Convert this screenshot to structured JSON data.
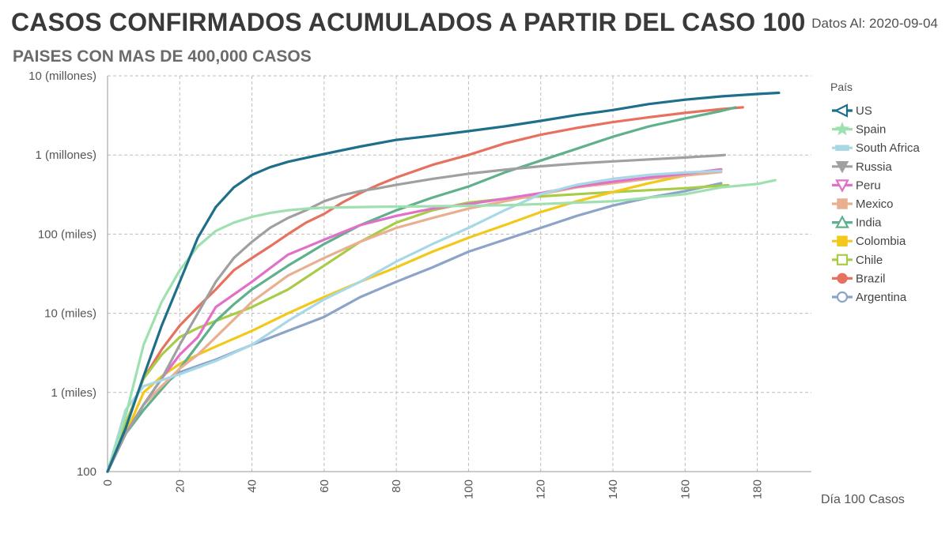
{
  "header": {
    "title": "CASOS CONFIRMADOS ACUMULADOS A PARTIR DEL CASO 100",
    "subtitle": "PAISES CON MAS DE 400,000 CASOS",
    "date_label": "Datos Al: 2020-09-04"
  },
  "chart_data": {
    "type": "line",
    "title": "CASOS CONFIRMADOS ACUMULADOS A PARTIR DEL CASO 100",
    "subtitle": "PAISES CON MAS DE 400,000 CASOS",
    "xlabel": "Día 100 Casos",
    "ylabel": "",
    "x_ticks": [
      0,
      20,
      40,
      60,
      80,
      100,
      120,
      140,
      160,
      180
    ],
    "xlim": [
      0,
      195
    ],
    "y_scale": "log",
    "ylim": [
      100,
      10000000
    ],
    "y_ticks": [
      100,
      1000,
      10000,
      100000,
      1000000,
      10000000
    ],
    "y_tick_labels": [
      "100",
      "1 (miles)",
      "10 (miles)",
      "100 (miles)",
      "1 (millones)",
      "10 (millones)"
    ],
    "grid": true,
    "legend_title": "País",
    "legend_position": "right",
    "series": [
      {
        "name": "US",
        "color": "#1f6f8b",
        "marker": "tri-left",
        "points": [
          [
            0,
            100
          ],
          [
            5,
            350
          ],
          [
            10,
            1600
          ],
          [
            15,
            7000
          ],
          [
            20,
            25000
          ],
          [
            25,
            90000
          ],
          [
            30,
            220000
          ],
          [
            35,
            390000
          ],
          [
            40,
            560000
          ],
          [
            45,
            700000
          ],
          [
            50,
            820000
          ],
          [
            55,
            920000
          ],
          [
            60,
            1030000
          ],
          [
            70,
            1280000
          ],
          [
            80,
            1550000
          ],
          [
            90,
            1750000
          ],
          [
            100,
            2000000
          ],
          [
            110,
            2300000
          ],
          [
            120,
            2700000
          ],
          [
            130,
            3200000
          ],
          [
            140,
            3700000
          ],
          [
            150,
            4400000
          ],
          [
            160,
            5000000
          ],
          [
            170,
            5500000
          ],
          [
            180,
            5900000
          ],
          [
            186,
            6100000
          ]
        ]
      },
      {
        "name": "Spain",
        "color": "#9fe0b0",
        "marker": "star",
        "points": [
          [
            0,
            100
          ],
          [
            5,
            500
          ],
          [
            10,
            4000
          ],
          [
            15,
            14000
          ],
          [
            20,
            35000
          ],
          [
            25,
            70000
          ],
          [
            30,
            110000
          ],
          [
            35,
            140000
          ],
          [
            40,
            165000
          ],
          [
            45,
            185000
          ],
          [
            50,
            200000
          ],
          [
            55,
            210000
          ],
          [
            60,
            216000
          ],
          [
            70,
            220000
          ],
          [
            80,
            223000
          ],
          [
            90,
            225000
          ],
          [
            100,
            228000
          ],
          [
            110,
            232000
          ],
          [
            120,
            240000
          ],
          [
            130,
            250000
          ],
          [
            140,
            260000
          ],
          [
            150,
            290000
          ],
          [
            160,
            320000
          ],
          [
            170,
            390000
          ],
          [
            180,
            430000
          ],
          [
            185,
            480000
          ]
        ]
      },
      {
        "name": "South Africa",
        "color": "#a8d8e6",
        "marker": "dash",
        "points": [
          [
            0,
            100
          ],
          [
            5,
            600
          ],
          [
            10,
            1200
          ],
          [
            20,
            1700
          ],
          [
            30,
            2500
          ],
          [
            40,
            4000
          ],
          [
            50,
            8000
          ],
          [
            60,
            15000
          ],
          [
            70,
            25000
          ],
          [
            80,
            45000
          ],
          [
            90,
            75000
          ],
          [
            100,
            120000
          ],
          [
            110,
            200000
          ],
          [
            120,
            320000
          ],
          [
            130,
            420000
          ],
          [
            140,
            500000
          ],
          [
            150,
            560000
          ],
          [
            160,
            600000
          ],
          [
            170,
            630000
          ]
        ]
      },
      {
        "name": "Russia",
        "color": "#a0a0a0",
        "marker": "tri-down",
        "points": [
          [
            0,
            100
          ],
          [
            5,
            300
          ],
          [
            10,
            700
          ],
          [
            15,
            1500
          ],
          [
            20,
            4000
          ],
          [
            25,
            10000
          ],
          [
            30,
            25000
          ],
          [
            35,
            50000
          ],
          [
            40,
            80000
          ],
          [
            45,
            120000
          ],
          [
            50,
            160000
          ],
          [
            55,
            200000
          ],
          [
            60,
            260000
          ],
          [
            65,
            310000
          ],
          [
            70,
            350000
          ],
          [
            75,
            380000
          ],
          [
            80,
            420000
          ],
          [
            90,
            500000
          ],
          [
            100,
            580000
          ],
          [
            110,
            650000
          ],
          [
            120,
            720000
          ],
          [
            130,
            780000
          ],
          [
            140,
            830000
          ],
          [
            150,
            880000
          ],
          [
            160,
            930000
          ],
          [
            170,
            990000
          ],
          [
            171,
            1000000
          ]
        ]
      },
      {
        "name": "Peru",
        "color": "#e070c8",
        "marker": "tri-down-open",
        "points": [
          [
            0,
            100
          ],
          [
            5,
            300
          ],
          [
            10,
            700
          ],
          [
            15,
            1500
          ],
          [
            20,
            3000
          ],
          [
            25,
            5000
          ],
          [
            30,
            12000
          ],
          [
            40,
            25000
          ],
          [
            50,
            55000
          ],
          [
            60,
            85000
          ],
          [
            70,
            130000
          ],
          [
            80,
            170000
          ],
          [
            90,
            210000
          ],
          [
            100,
            240000
          ],
          [
            110,
            280000
          ],
          [
            120,
            330000
          ],
          [
            130,
            400000
          ],
          [
            140,
            460000
          ],
          [
            150,
            520000
          ],
          [
            160,
            580000
          ],
          [
            170,
            660000
          ]
        ]
      },
      {
        "name": "Mexico",
        "color": "#e8b090",
        "marker": "square",
        "points": [
          [
            0,
            100
          ],
          [
            5,
            300
          ],
          [
            10,
            700
          ],
          [
            15,
            1200
          ],
          [
            20,
            2000
          ],
          [
            25,
            3000
          ],
          [
            30,
            5000
          ],
          [
            40,
            14000
          ],
          [
            50,
            30000
          ],
          [
            60,
            50000
          ],
          [
            70,
            80000
          ],
          [
            80,
            120000
          ],
          [
            90,
            160000
          ],
          [
            100,
            210000
          ],
          [
            110,
            260000
          ],
          [
            120,
            320000
          ],
          [
            130,
            390000
          ],
          [
            140,
            440000
          ],
          [
            150,
            500000
          ],
          [
            160,
            550000
          ],
          [
            170,
            610000
          ]
        ]
      },
      {
        "name": "India",
        "color": "#5fb08c",
        "marker": "triangle",
        "points": [
          [
            0,
            100
          ],
          [
            5,
            300
          ],
          [
            10,
            600
          ],
          [
            15,
            1100
          ],
          [
            20,
            2000
          ],
          [
            25,
            4000
          ],
          [
            30,
            8000
          ],
          [
            35,
            13000
          ],
          [
            40,
            20000
          ],
          [
            50,
            40000
          ],
          [
            60,
            75000
          ],
          [
            70,
            130000
          ],
          [
            80,
            200000
          ],
          [
            90,
            290000
          ],
          [
            100,
            400000
          ],
          [
            110,
            600000
          ],
          [
            120,
            850000
          ],
          [
            130,
            1200000
          ],
          [
            140,
            1700000
          ],
          [
            150,
            2300000
          ],
          [
            160,
            2900000
          ],
          [
            170,
            3600000
          ],
          [
            174,
            4000000
          ]
        ]
      },
      {
        "name": "Colombia",
        "color": "#f2c81a",
        "marker": "square",
        "points": [
          [
            0,
            100
          ],
          [
            5,
            300
          ],
          [
            10,
            1000
          ],
          [
            15,
            1600
          ],
          [
            20,
            2300
          ],
          [
            25,
            3000
          ],
          [
            30,
            3800
          ],
          [
            40,
            6000
          ],
          [
            50,
            10000
          ],
          [
            60,
            16000
          ],
          [
            70,
            25000
          ],
          [
            80,
            38000
          ],
          [
            90,
            60000
          ],
          [
            100,
            90000
          ],
          [
            110,
            130000
          ],
          [
            120,
            190000
          ],
          [
            130,
            260000
          ],
          [
            140,
            340000
          ],
          [
            150,
            440000
          ],
          [
            160,
            550000
          ],
          [
            170,
            640000
          ]
        ]
      },
      {
        "name": "Chile",
        "color": "#a8cc48",
        "marker": "square-open",
        "points": [
          [
            0,
            100
          ],
          [
            5,
            400
          ],
          [
            10,
            1500
          ],
          [
            15,
            3000
          ],
          [
            20,
            5000
          ],
          [
            25,
            6500
          ],
          [
            30,
            8000
          ],
          [
            40,
            12000
          ],
          [
            50,
            20000
          ],
          [
            60,
            40000
          ],
          [
            70,
            80000
          ],
          [
            80,
            140000
          ],
          [
            90,
            200000
          ],
          [
            100,
            250000
          ],
          [
            110,
            280000
          ],
          [
            120,
            300000
          ],
          [
            130,
            320000
          ],
          [
            140,
            340000
          ],
          [
            150,
            360000
          ],
          [
            160,
            380000
          ],
          [
            170,
            410000
          ],
          [
            172,
            415000
          ]
        ]
      },
      {
        "name": "Brazil",
        "color": "#e8705e",
        "marker": "circle",
        "points": [
          [
            0,
            100
          ],
          [
            5,
            400
          ],
          [
            10,
            1500
          ],
          [
            15,
            3500
          ],
          [
            20,
            7000
          ],
          [
            25,
            12000
          ],
          [
            30,
            20000
          ],
          [
            35,
            35000
          ],
          [
            40,
            50000
          ],
          [
            45,
            70000
          ],
          [
            50,
            100000
          ],
          [
            55,
            140000
          ],
          [
            60,
            180000
          ],
          [
            65,
            250000
          ],
          [
            70,
            330000
          ],
          [
            75,
            420000
          ],
          [
            80,
            520000
          ],
          [
            90,
            750000
          ],
          [
            100,
            1000000
          ],
          [
            110,
            1400000
          ],
          [
            120,
            1800000
          ],
          [
            130,
            2200000
          ],
          [
            140,
            2600000
          ],
          [
            150,
            3000000
          ],
          [
            160,
            3400000
          ],
          [
            170,
            3800000
          ],
          [
            176,
            4000000
          ]
        ]
      },
      {
        "name": "Argentina",
        "color": "#8ca4c8",
        "marker": "circle-open",
        "points": [
          [
            0,
            100
          ],
          [
            5,
            300
          ],
          [
            10,
            700
          ],
          [
            15,
            1200
          ],
          [
            20,
            1800
          ],
          [
            30,
            2600
          ],
          [
            40,
            4000
          ],
          [
            50,
            6000
          ],
          [
            60,
            9000
          ],
          [
            70,
            16000
          ],
          [
            80,
            25000
          ],
          [
            90,
            38000
          ],
          [
            100,
            60000
          ],
          [
            110,
            85000
          ],
          [
            120,
            120000
          ],
          [
            130,
            170000
          ],
          [
            140,
            230000
          ],
          [
            150,
            290000
          ],
          [
            160,
            350000
          ],
          [
            170,
            440000
          ]
        ]
      }
    ]
  }
}
